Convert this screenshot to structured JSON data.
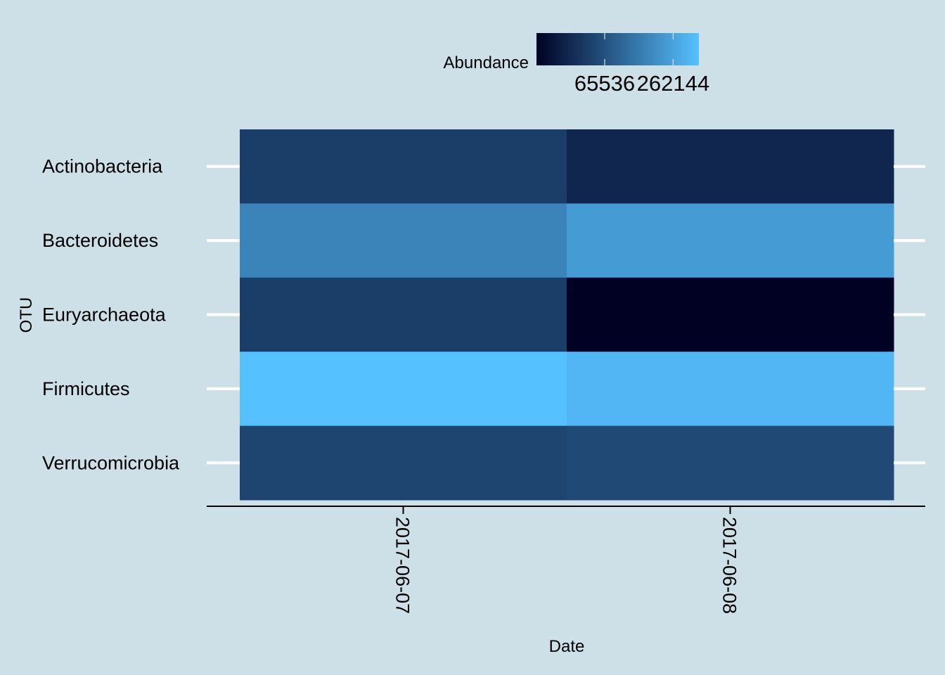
{
  "chart_data": {
    "type": "heatmap",
    "title": "",
    "xlabel": "Date",
    "ylabel": "OTU",
    "x": [
      "2017-06-07",
      "2017-06-08"
    ],
    "y": [
      "Actinobacteria",
      "Bacteroidetes",
      "Euryarchaeota",
      "Firmicutes",
      "Verrucomicrobia"
    ],
    "values": [
      [
        38000,
        14000
      ],
      [
        172000,
        240000
      ],
      [
        38000,
        1
      ],
      [
        370000,
        330000
      ],
      [
        46000,
        52000
      ]
    ],
    "color_scale": {
      "low": "#000123",
      "high": "#56c1ff",
      "min": 1,
      "max": 370000,
      "transform": "sqrt"
    },
    "legend": {
      "title": "Abundance",
      "position": "top",
      "ticks": [
        65536,
        262144
      ],
      "tick_labels": [
        "65536",
        "262144"
      ]
    },
    "grid": false,
    "background": "#cde0e8",
    "tick_color": "#ffffff"
  }
}
